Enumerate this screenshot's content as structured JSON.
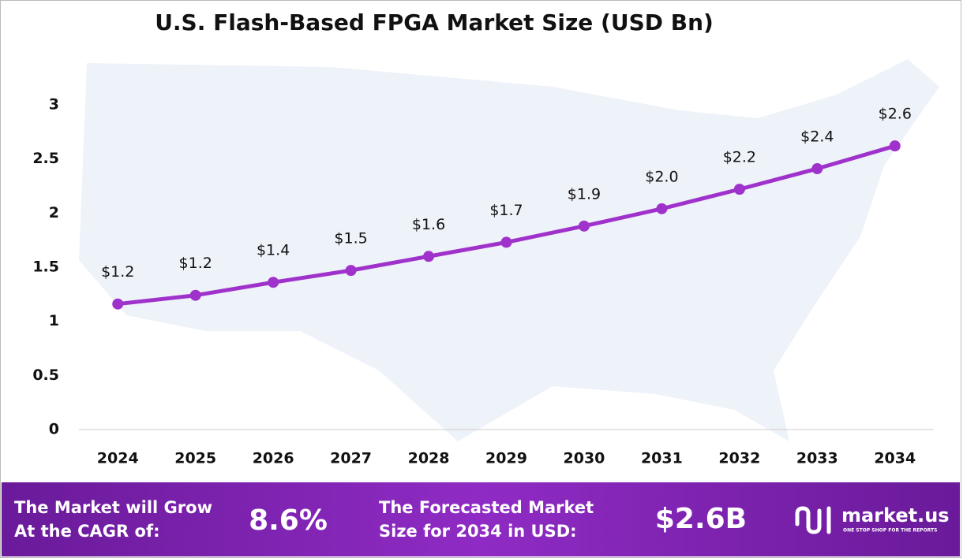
{
  "chart_data": {
    "type": "line",
    "title": "U.S. Flash-Based FPGA Market Size (USD Bn)",
    "categories": [
      "2024",
      "2025",
      "2026",
      "2027",
      "2028",
      "2029",
      "2030",
      "2031",
      "2032",
      "2033",
      "2034"
    ],
    "series": [
      {
        "name": "Market Size",
        "color": "#a032cc",
        "values": [
          1.16,
          1.24,
          1.36,
          1.47,
          1.6,
          1.73,
          1.88,
          2.04,
          2.22,
          2.41,
          2.62
        ],
        "value_labels": [
          "$1.2",
          "$1.2",
          "$1.4",
          "$1.5",
          "$1.6",
          "$1.7",
          "$1.9",
          "$2.0",
          "$2.2",
          "$2.4",
          "$2.6"
        ]
      }
    ],
    "ylim": [
      0,
      3
    ],
    "yticks": [
      0,
      0.5,
      1,
      1.5,
      2,
      2.5,
      3
    ],
    "grid": false
  },
  "footer": {
    "cagr_label": [
      "The Market will Grow",
      "At the CAGR of:"
    ],
    "cagr_value": "8.6%",
    "forecast_label": [
      "The Forecasted Market",
      "Size for 2034 in USD:"
    ],
    "forecast_value": "$2.6B",
    "brand": "market.us",
    "tagline": "ONE STOP SHOP FOR THE REPORTS"
  }
}
